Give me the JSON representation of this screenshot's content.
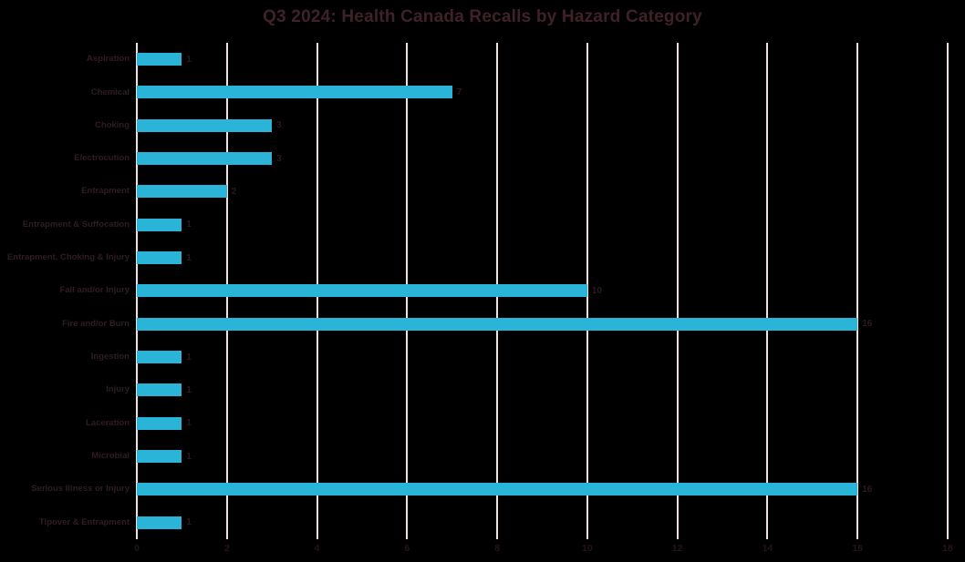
{
  "title": "Q3 2024: Health Canada Recalls by Hazard Category",
  "chart_data": {
    "type": "bar",
    "orientation": "horizontal",
    "title": "Q3 2024: Health Canada Recalls by Hazard Category",
    "categories": [
      "Aspiration",
      "Chemical",
      "Choking",
      "Electrocution",
      "Entrapment",
      "Entrapment & Suffocation",
      "Entrapment, Choking & Injury",
      "Fall and/or Injury",
      "Fire and/or Burn",
      "Ingestion",
      "Injury",
      "Laceration",
      "Microbial",
      "Serious Illness or Injury",
      "Tipover & Entrapment"
    ],
    "values": [
      1,
      7,
      3,
      3,
      2,
      1,
      1,
      10,
      16,
      1,
      1,
      1,
      1,
      16,
      1
    ],
    "data_labels": [
      "1",
      "7",
      "3",
      "3",
      "2",
      "1",
      "1",
      "10",
      "16",
      "1",
      "1",
      "1",
      "1",
      "16",
      "1"
    ],
    "xlabel": "",
    "ylabel": "",
    "xlim": [
      0,
      18
    ],
    "x_ticks": [
      0,
      2,
      4,
      6,
      8,
      10,
      12,
      14,
      16,
      18
    ],
    "grid": true,
    "legend": false,
    "colors": {
      "background": "#000000",
      "bar": "#29B4D8",
      "gridline": "#EDE2E0",
      "title_text": "#3F2128",
      "category_text": "#301C23",
      "value_text": "#2B191E",
      "tick_text": "#241418"
    }
  }
}
